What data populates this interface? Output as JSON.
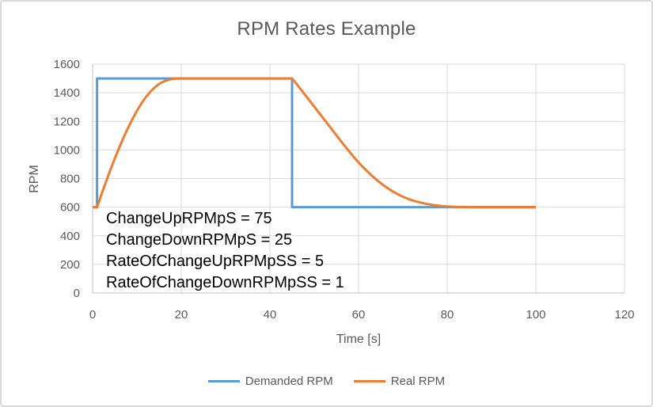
{
  "chart_data": {
    "type": "line",
    "title": "RPM Rates Example",
    "xlabel": "Time [s]",
    "ylabel": "RPM",
    "xlim": [
      0,
      120
    ],
    "ylim": [
      0,
      1600
    ],
    "x_ticks": [
      0,
      20,
      40,
      60,
      80,
      100,
      120
    ],
    "y_ticks": [
      0,
      200,
      400,
      600,
      800,
      1000,
      1200,
      1400,
      1600
    ],
    "grid": true,
    "legend_position": "bottom",
    "colors": {
      "grid": "#d9d9d9",
      "axis_line": "#bfbfbf",
      "tick_text": "#595959",
      "title_text": "#595959",
      "annotation_text": "#000000",
      "demanded": "#5b9bd5",
      "real": "#ed7d31"
    },
    "annotations": [
      "ChangeUpRPMpS = 75",
      "ChangeDownRPMpS = 25",
      "RateOfChangeUpRPMpSS = 5",
      "RateOfChangeDownRPMpSS = 1"
    ],
    "series": [
      {
        "name": "Demanded RPM",
        "color": "#5b9bd5",
        "points": [
          [
            0,
            600
          ],
          [
            1,
            600
          ],
          [
            1,
            1500
          ],
          [
            45,
            1500
          ],
          [
            45,
            600
          ],
          [
            100,
            600
          ]
        ]
      },
      {
        "name": "Real RPM",
        "color": "#ed7d31",
        "points": [
          [
            0,
            600
          ],
          [
            1,
            600
          ],
          [
            2,
            690
          ],
          [
            3,
            777
          ],
          [
            4,
            860
          ],
          [
            5,
            940
          ],
          [
            6,
            1016
          ],
          [
            7,
            1088
          ],
          [
            8,
            1155
          ],
          [
            9,
            1217
          ],
          [
            10,
            1274
          ],
          [
            11,
            1325
          ],
          [
            12,
            1369
          ],
          [
            13,
            1406
          ],
          [
            14,
            1437
          ],
          [
            15,
            1461
          ],
          [
            16,
            1478
          ],
          [
            17,
            1490
          ],
          [
            18,
            1497
          ],
          [
            19,
            1500
          ],
          [
            45,
            1500
          ],
          [
            46,
            1462
          ],
          [
            47,
            1423
          ],
          [
            48,
            1383
          ],
          [
            49,
            1343
          ],
          [
            50,
            1303
          ],
          [
            51,
            1263
          ],
          [
            52,
            1223
          ],
          [
            53,
            1183
          ],
          [
            54,
            1143
          ],
          [
            55,
            1103
          ],
          [
            56,
            1063
          ],
          [
            57,
            1023
          ],
          [
            58,
            985
          ],
          [
            59,
            948
          ],
          [
            60,
            913
          ],
          [
            61,
            880
          ],
          [
            62,
            849
          ],
          [
            63,
            820
          ],
          [
            64,
            793
          ],
          [
            65,
            768
          ],
          [
            66,
            745
          ],
          [
            67,
            724
          ],
          [
            68,
            705
          ],
          [
            69,
            688
          ],
          [
            70,
            673
          ],
          [
            71,
            660
          ],
          [
            72,
            649
          ],
          [
            73,
            640
          ],
          [
            74,
            632
          ],
          [
            75,
            625
          ],
          [
            76,
            619
          ],
          [
            77,
            614
          ],
          [
            78,
            610
          ],
          [
            79,
            607
          ],
          [
            80,
            605
          ],
          [
            82,
            602
          ],
          [
            84,
            601
          ],
          [
            86,
            600
          ],
          [
            100,
            600
          ]
        ]
      }
    ]
  }
}
